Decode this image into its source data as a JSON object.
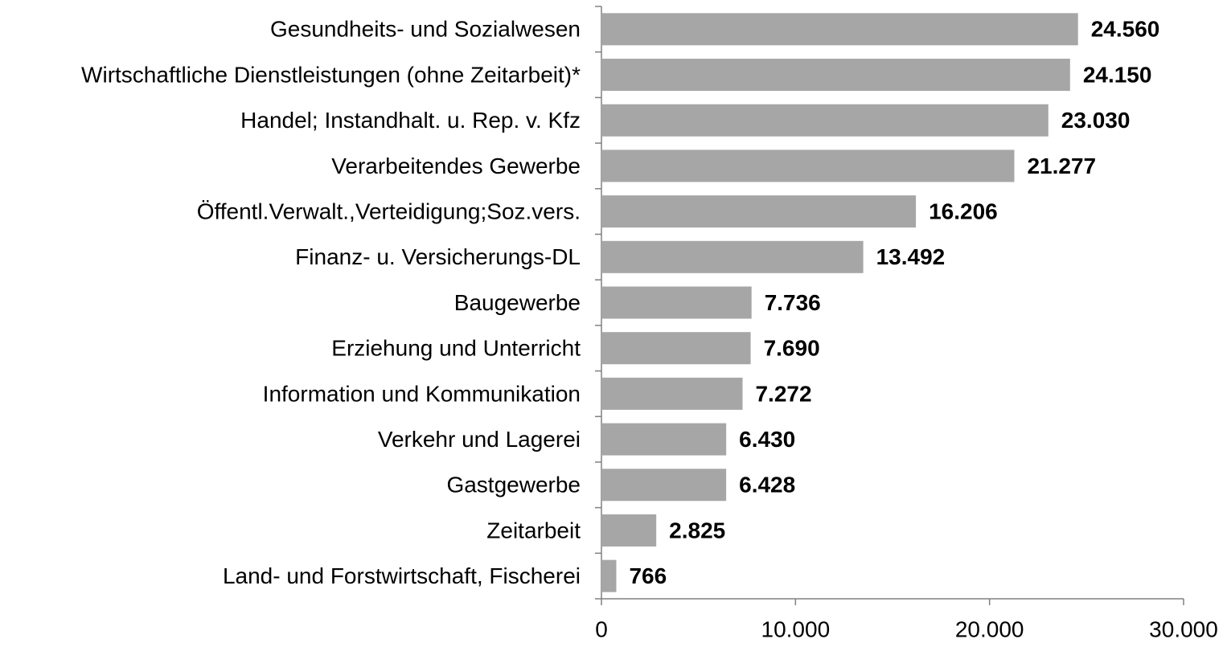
{
  "chart_data": {
    "type": "bar",
    "orientation": "horizontal",
    "categories": [
      "Gesundheits- und Sozialwesen",
      "Wirtschaftliche Dienstleistungen (ohne Zeitarbeit)*",
      "Handel; Instandhalt. u. Rep. v. Kfz",
      "Verarbeitendes Gewerbe",
      "Öffentl.Verwalt.,Verteidigung;Soz.vers.",
      "Finanz- u. Versicherungs-DL",
      "Baugewerbe",
      "Erziehung und Unterricht",
      "Information und Kommunikation",
      "Verkehr und Lagerei",
      "Gastgewerbe",
      "Zeitarbeit",
      "Land- und Forstwirtschaft, Fischerei"
    ],
    "values": [
      24560,
      24150,
      23030,
      21277,
      16206,
      13492,
      7736,
      7690,
      7272,
      6430,
      6428,
      2825,
      766
    ],
    "value_labels": [
      "24.560",
      "24.150",
      "23.030",
      "21.277",
      "16.206",
      "13.492",
      "7.736",
      "7.690",
      "7.272",
      "6.430",
      "6.428",
      "2.825",
      "766"
    ],
    "color": "#a6a6a6",
    "xlim": [
      0,
      30000
    ],
    "xticks": [
      0,
      {
        "value": 10000,
        "label": "10.000"
      },
      {
        "value": 20000,
        "label": "20.000"
      },
      {
        "value": 30000,
        "label": "30.000"
      }
    ],
    "grid": false
  }
}
